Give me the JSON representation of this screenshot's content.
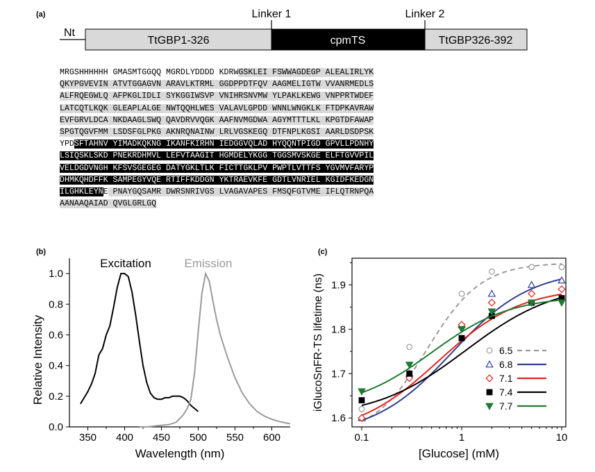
{
  "panel_a": {
    "label": "(a)",
    "nt_label": "Nt",
    "domains": [
      "TtGBP1-326",
      "cpmTS",
      "TtGBP326-392"
    ],
    "linkers": [
      "Linker 1",
      "Linker 2"
    ],
    "colors": {
      "grey": "#d9d9d9",
      "black": "#000000",
      "white": "#ffffff"
    },
    "sequence_rows": [
      [
        [
          "MRGSHHHHHH GMASMTGGQQ MGRDLYDDDD KDRW",
          "white"
        ],
        [
          "GSKLEI FSWWAGDEGP ALEALIRLYK",
          "grey"
        ]
      ],
      [
        [
          "QKYPGVEVIN ATVTGGAGVN ARAVLKTRML GGDPPDTFQV AAGMELIGTW VVANRMEDLS",
          "grey"
        ]
      ],
      [
        [
          "ALFRQEGWLQ AFPKGLIDLI SYKGGIWSVP VNIHRSNVMW YLPAKLKEWG VNPPRTWDEF",
          "grey"
        ]
      ],
      [
        [
          "LATCQTLKQK GLEAPLALGE NWTQQHLWES VALAVLGPDD WNNLWNGKLK FTDPKAVRAW",
          "grey"
        ]
      ],
      [
        [
          "EVFGRVLDCA NKDAAGLSWQ QAVDRVVQGK AAFNVMGDWA AGYMTTTLKL KPGTDFAWAP",
          "grey"
        ]
      ],
      [
        [
          "SPGTQGVFMM LSDSFGLPKG AKNRQNAINW LRLVGSKEGQ DTFNPLKGSI AARLDSDPSK",
          "grey"
        ]
      ],
      [
        [
          "YPD",
          "white"
        ],
        [
          "SFTAHNV YIMADKQKNG IKANFKIRHN IEDGGVQLAD HYQQNTPIGD GPVLLPDNHY",
          "black"
        ]
      ],
      [
        [
          "LSIQSKLSKD PNEKRDHMVL LEFVTAAGIT HGMDELYKGG TGGSMVSKGE ELFTGVVPIL",
          "black"
        ]
      ],
      [
        [
          "VELDGDVNGH KFSVSGEGEG DATYGKLTLK FICTTGKLPV PWPTLVTTFS YGVMVFARYP",
          "black"
        ]
      ],
      [
        [
          "DHMKQHDFFK SAMPEGYVQE RTIFFKDDGN YKTRAEVKFE GDTLVNRIEL KGIDFKEDGN",
          "black"
        ]
      ],
      [
        [
          "ILGHKLEYN",
          "black"
        ],
        [
          "E",
          "white"
        ],
        [
          " PNAYGQSAMR DWRSNRIVGS LVAGAVAPES FMSQFGTVME IFLQTRNPQA",
          "grey"
        ]
      ],
      [
        [
          "AANAAQAIAD QVGLGRLGQ",
          "grey"
        ]
      ]
    ]
  },
  "panel_b": {
    "label": "(b)",
    "chart_data": {
      "type": "line",
      "xlabel": "Wavelength (nm)",
      "ylabel": "Relative Intensity",
      "xlim": [
        325,
        625
      ],
      "ylim": [
        0,
        1.1
      ],
      "xticks": [
        "350",
        "400",
        "450",
        "500",
        "550",
        "600"
      ],
      "yticks": [
        "0.0",
        "0.2",
        "0.4",
        "0.6",
        "0.8",
        "1.0"
      ],
      "series": [
        {
          "name": "Excitation",
          "color": "#000000",
          "x": [
            340,
            345,
            350,
            355,
            360,
            365,
            370,
            375,
            380,
            385,
            390,
            395,
            400,
            405,
            410,
            415,
            420,
            425,
            430,
            435,
            440,
            445,
            450,
            455,
            460,
            465,
            470,
            475,
            480,
            485,
            490,
            495,
            500
          ],
          "y": [
            0.15,
            0.19,
            0.23,
            0.28,
            0.35,
            0.47,
            0.51,
            0.6,
            0.66,
            0.78,
            0.91,
            1.0,
            1.0,
            0.98,
            0.88,
            0.73,
            0.56,
            0.4,
            0.29,
            0.22,
            0.19,
            0.18,
            0.18,
            0.19,
            0.19,
            0.2,
            0.2,
            0.2,
            0.19,
            0.17,
            0.14,
            0.12,
            0.1
          ]
        },
        {
          "name": "Emission",
          "color": "#999999",
          "x": [
            420,
            430,
            440,
            450,
            460,
            470,
            480,
            485,
            490,
            495,
            500,
            505,
            510,
            515,
            520,
            525,
            530,
            540,
            550,
            560,
            570,
            580,
            590,
            600,
            610,
            620,
            625
          ],
          "y": [
            0.0,
            0.0,
            0.005,
            0.01,
            0.015,
            0.03,
            0.08,
            0.12,
            0.18,
            0.35,
            0.62,
            0.87,
            1.0,
            0.95,
            0.82,
            0.7,
            0.6,
            0.45,
            0.32,
            0.22,
            0.15,
            0.1,
            0.07,
            0.05,
            0.035,
            0.025,
            0.02
          ]
        }
      ]
    }
  },
  "panel_c": {
    "label": "(c)",
    "chart_data": {
      "type": "scatter",
      "xlabel": "[Glucose] (mM)",
      "ylabel": "iGlucoSnFR-TS lifetime (ns)",
      "xscale": "log",
      "xlim": [
        0.08,
        11
      ],
      "ylim": [
        1.58,
        1.96
      ],
      "xticks": [
        {
          "v": 0.1,
          "label": "0.1"
        },
        {
          "v": 1,
          "label": "1"
        },
        {
          "v": 10,
          "label": "10"
        }
      ],
      "yticks": [
        "1.6",
        "1.7",
        "1.8",
        "1.9"
      ],
      "x": [
        0.1,
        0.3,
        1,
        2,
        5,
        10
      ],
      "series": [
        {
          "name": "6.5",
          "color": "#999999",
          "marker": "circle-open",
          "dashed": true,
          "values": [
            1.62,
            1.76,
            1.88,
            1.93,
            1.94,
            1.94
          ],
          "fit": {
            "bottom": 1.56,
            "top": 1.95,
            "ec50": 0.45,
            "hill": 1.6
          }
        },
        {
          "name": "6.8",
          "color": "#2e3d8f",
          "marker": "triangle-open",
          "dashed": false,
          "values": [
            1.6,
            1.7,
            1.81,
            1.88,
            1.9,
            1.91
          ],
          "fit": {
            "bottom": 1.56,
            "top": 1.935,
            "ec50": 0.8,
            "hill": 1.1
          }
        },
        {
          "name": "7.1",
          "color": "#e2231a",
          "marker": "diamond-open",
          "dashed": false,
          "values": [
            1.6,
            1.69,
            1.81,
            1.86,
            1.88,
            1.89
          ],
          "fit": {
            "bottom": 1.56,
            "top": 1.895,
            "ec50": 0.58,
            "hill": 1.05
          }
        },
        {
          "name": "7.4",
          "color": "#000000",
          "marker": "square-filled",
          "dashed": false,
          "values": [
            1.64,
            1.7,
            1.78,
            1.83,
            1.86,
            1.87
          ],
          "fit": {
            "bottom": 1.6,
            "top": 1.905,
            "ec50": 1.1,
            "hill": 0.95
          }
        },
        {
          "name": "7.7",
          "color": "#1e7a2e",
          "marker": "triangle-down-filled",
          "dashed": false,
          "values": [
            1.66,
            1.72,
            1.8,
            1.84,
            1.86,
            1.86
          ],
          "fit": {
            "bottom": 1.62,
            "top": 1.875,
            "ec50": 0.5,
            "hill": 1.1
          }
        }
      ]
    }
  }
}
